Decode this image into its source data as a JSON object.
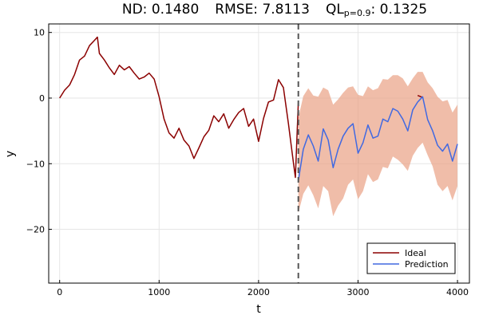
{
  "chart_data": {
    "type": "line",
    "title": {
      "nd_label": "ND: 0.1480",
      "rmse_label": "RMSE: 7.8113",
      "ql_prefix": "QL",
      "ql_subscript": "p=0.9",
      "ql_value": ": 0.1325"
    },
    "xlabel": "t",
    "ylabel": "y",
    "xlim": [
      -110,
      4120
    ],
    "ylim": [
      -28.2,
      11.3
    ],
    "xticks": [
      0,
      1000,
      2000,
      3000,
      4000
    ],
    "xtick_labels": [
      "0",
      "1000",
      "2000",
      "3000",
      "4000"
    ],
    "yticks": [
      10,
      0,
      -10,
      -20
    ],
    "ytick_labels": [
      "10",
      "0",
      "−10",
      "−20"
    ],
    "grid": true,
    "legend_position": "bottom-right",
    "split_x": 2400,
    "colors": {
      "ideal": "#8b0000",
      "prediction": "#4169e1",
      "band": "#e9a185",
      "split_line": "#555555"
    },
    "series": [
      {
        "name": "Ideal",
        "x": [
          0,
          50,
          100,
          150,
          200,
          250,
          300,
          350,
          380,
          400,
          450,
          500,
          550,
          600,
          650,
          700,
          750,
          800,
          850,
          900,
          950,
          1000,
          1050,
          1100,
          1150,
          1200,
          1250,
          1300,
          1350,
          1400,
          1450,
          1500,
          1550,
          1600,
          1650,
          1700,
          1750,
          1800,
          1850,
          1900,
          1950,
          2000,
          2050,
          2100,
          2150,
          2200,
          2250,
          2300,
          2350,
          2370,
          2400,
          3600,
          3650
        ],
        "y": [
          0,
          1.2,
          2.0,
          3.6,
          5.8,
          6.4,
          8.0,
          8.8,
          9.3,
          6.8,
          5.8,
          4.6,
          3.6,
          5.0,
          4.3,
          4.8,
          3.8,
          2.9,
          3.2,
          3.8,
          2.9,
          0.2,
          -3.2,
          -5.3,
          -6.1,
          -4.6,
          -6.4,
          -7.3,
          -9.2,
          -7.6,
          -5.9,
          -4.9,
          -2.7,
          -3.6,
          -2.4,
          -4.6,
          -3.3,
          -2.2,
          -1.6,
          -4.3,
          -3.2,
          -6.6,
          -3.1,
          -0.6,
          -0.3,
          2.8,
          1.6,
          -3.9,
          -9.8,
          -12.1,
          -0.6,
          0.4,
          0.1
        ]
      },
      {
        "name": "Prediction",
        "x": [
          2400,
          2450,
          2500,
          2550,
          2600,
          2650,
          2700,
          2750,
          2800,
          2850,
          2900,
          2950,
          3000,
          3050,
          3100,
          3150,
          3200,
          3250,
          3300,
          3350,
          3400,
          3450,
          3500,
          3550,
          3600,
          3650,
          3700,
          3750,
          3800,
          3850,
          3900,
          3950,
          4000
        ],
        "y": [
          -12.6,
          -7.8,
          -5.6,
          -7.3,
          -9.6,
          -4.7,
          -6.4,
          -10.6,
          -7.8,
          -5.8,
          -4.6,
          -3.9,
          -8.4,
          -6.8,
          -4.1,
          -6.1,
          -5.8,
          -3.2,
          -3.6,
          -1.6,
          -2.0,
          -3.2,
          -5.0,
          -1.8,
          -0.6,
          0.2,
          -3.3,
          -5.0,
          -7.2,
          -8.1,
          -7.0,
          -9.6,
          -7.0
        ]
      }
    ],
    "band": {
      "x": [
        2400,
        2450,
        2500,
        2550,
        2600,
        2650,
        2700,
        2750,
        2800,
        2850,
        2900,
        2950,
        3000,
        3050,
        3100,
        3150,
        3200,
        3250,
        3300,
        3350,
        3400,
        3450,
        3500,
        3550,
        3600,
        3650,
        3700,
        3750,
        3800,
        3850,
        3900,
        3950,
        4000
      ],
      "upper": [
        -3.0,
        0.3,
        1.5,
        0.4,
        0.2,
        1.6,
        1.2,
        -1.0,
        -0.2,
        0.8,
        1.6,
        1.8,
        0.5,
        0.3,
        1.8,
        1.2,
        1.5,
        2.9,
        2.8,
        3.5,
        3.5,
        3.0,
        1.8,
        3.0,
        4.0,
        4.0,
        2.4,
        1.5,
        0.2,
        -0.5,
        -0.3,
        -2.2,
        -1.0
      ],
      "lower": [
        -17.5,
        -14.6,
        -13.3,
        -14.8,
        -16.8,
        -13.4,
        -14.2,
        -18.0,
        -16.4,
        -15.3,
        -13.2,
        -12.4,
        -15.4,
        -14.2,
        -11.6,
        -12.8,
        -12.4,
        -10.5,
        -10.7,
        -8.9,
        -9.4,
        -10.1,
        -11.1,
        -8.8,
        -7.6,
        -6.8,
        -8.7,
        -10.4,
        -13.2,
        -14.2,
        -13.4,
        -15.6,
        -13.4
      ]
    }
  }
}
